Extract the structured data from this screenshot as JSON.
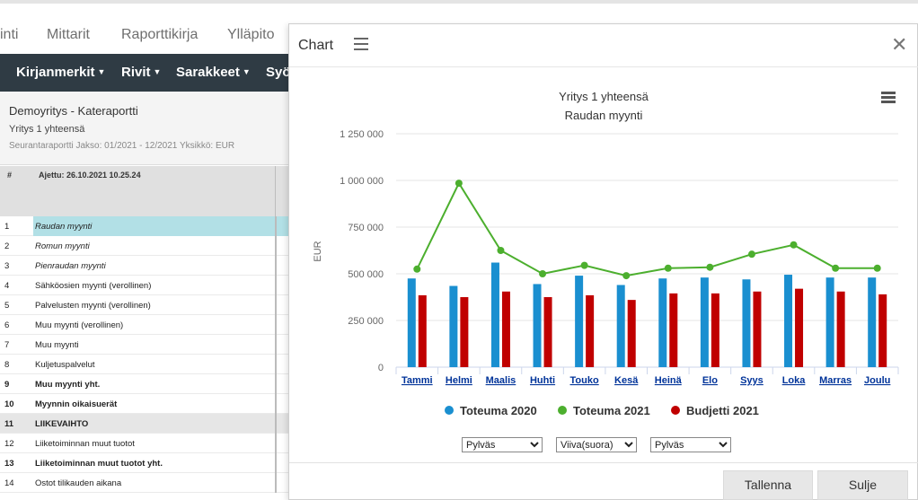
{
  "nav": {
    "tabs": [
      "inti",
      "Mittarit",
      "Raporttikirja",
      "Ylläpito"
    ]
  },
  "toolbar": {
    "items": [
      "Kirjanmerkit",
      "Rivit",
      "Sarakkeet",
      "Syö"
    ]
  },
  "report": {
    "title": "Demoyritys - Kateraportti",
    "subtitle": "Yritys 1 yhteensä",
    "meta": "Seurantaraportti Jakso: 01/2021 - 12/2021 Yksikkö: EUR",
    "grid_hash": "#",
    "run_label": "Ajettu: 26.10.2021 10.25.24",
    "rows": [
      {
        "num": "1",
        "label": "Raudan myynti",
        "style": "italic",
        "selected": true
      },
      {
        "num": "2",
        "label": "Romun myynti",
        "style": "italic"
      },
      {
        "num": "3",
        "label": "Pienraudan myynti",
        "style": "italic"
      },
      {
        "num": "4",
        "label": "Sähköosien myynti (verollinen)",
        "style": "normal"
      },
      {
        "num": "5",
        "label": "Palvelusten myynti (verollinen)",
        "style": "normal"
      },
      {
        "num": "6",
        "label": "Muu myynti (verollinen)",
        "style": "normal"
      },
      {
        "num": "7",
        "label": "Muu myynti",
        "style": "normal"
      },
      {
        "num": "8",
        "label": "Kuljetuspalvelut",
        "style": "normal"
      },
      {
        "num": "9",
        "label": "Muu myynti yht.",
        "style": "bold"
      },
      {
        "num": "10",
        "label": "Myynnin oikaisuerät",
        "style": "bold"
      },
      {
        "num": "11",
        "label": "LIIKEVAIHTO",
        "style": "bold",
        "shaded": true
      },
      {
        "num": "12",
        "label": "Liiketoiminnan muut tuotot",
        "style": "normal"
      },
      {
        "num": "13",
        "label": "Liiketoiminnan muut tuotot yht.",
        "style": "bold"
      },
      {
        "num": "14",
        "label": "Ostot tilikauden aikana",
        "style": "normal"
      }
    ]
  },
  "modal": {
    "title": "Chart",
    "close_symbol": "✕",
    "selects": [
      {
        "value": "Pylväs",
        "options": [
          "Pylväs",
          "Viiva(suora)"
        ]
      },
      {
        "value": "Viiva(suora)",
        "options": [
          "Pylväs",
          "Viiva(suora)"
        ]
      },
      {
        "value": "Pylväs",
        "options": [
          "Pylväs",
          "Viiva(suora)"
        ]
      }
    ],
    "save_label": "Tallenna",
    "close_label": "Sulje"
  },
  "colors": {
    "toteuma2020": "#1a8fd0",
    "toteuma2021": "#4caf2e",
    "budjetti2021": "#c00000"
  },
  "chart_data": {
    "type": "bar",
    "title": "Yritys 1 yhteensä",
    "subtitle": "Raudan myynti",
    "ylabel": "EUR",
    "xlabel": "",
    "ylim": [
      0,
      1250000
    ],
    "yticks": [
      0,
      250000,
      500000,
      750000,
      1000000,
      1250000
    ],
    "ytick_labels": [
      "0",
      "250 000",
      "500 000",
      "750 000",
      "1 000 000",
      "1 250 000"
    ],
    "grid": true,
    "legend": "bottom",
    "categories": [
      "Tammi",
      "Helmi",
      "Maalis",
      "Huhti",
      "Touko",
      "Kesä",
      "Heinä",
      "Elo",
      "Syys",
      "Loka",
      "Marras",
      "Joulu"
    ],
    "series": [
      {
        "name": "Toteuma 2020",
        "type": "bar",
        "color": "#1a8fd0",
        "values": [
          475000,
          435000,
          560000,
          445000,
          490000,
          440000,
          475000,
          480000,
          470000,
          495000,
          480000,
          480000
        ]
      },
      {
        "name": "Toteuma 2021",
        "type": "line",
        "color": "#4caf2e",
        "values": [
          525000,
          985000,
          625000,
          500000,
          545000,
          490000,
          530000,
          535000,
          605000,
          655000,
          530000,
          530000
        ]
      },
      {
        "name": "Budjetti 2021",
        "type": "bar",
        "color": "#c00000",
        "values": [
          385000,
          375000,
          405000,
          375000,
          385000,
          360000,
          395000,
          395000,
          405000,
          420000,
          405000,
          390000
        ]
      }
    ]
  }
}
